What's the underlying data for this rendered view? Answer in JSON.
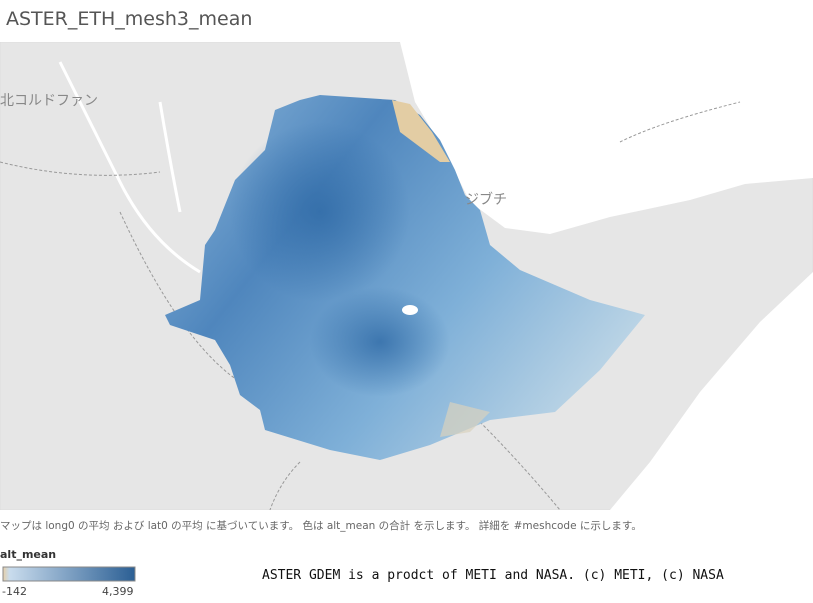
{
  "header": {
    "title": "ASTER_ETH_mesh3_mean"
  },
  "map": {
    "labels": [
      "北コルドファン",
      "ジブチ"
    ]
  },
  "caption": "マップは long0 の平均 および lat0 の平均 に基づいています。 色は alt_mean の合計 を示します。 詳細を #meshcode に示します。",
  "legend": {
    "title": "alt_mean",
    "min": -142,
    "max": {
      "value": 4399,
      "label": "4,399"
    }
  },
  "attribution": "ASTER GDEM is a prodct of METI and NASA. (c) METI, (c) NASA"
}
